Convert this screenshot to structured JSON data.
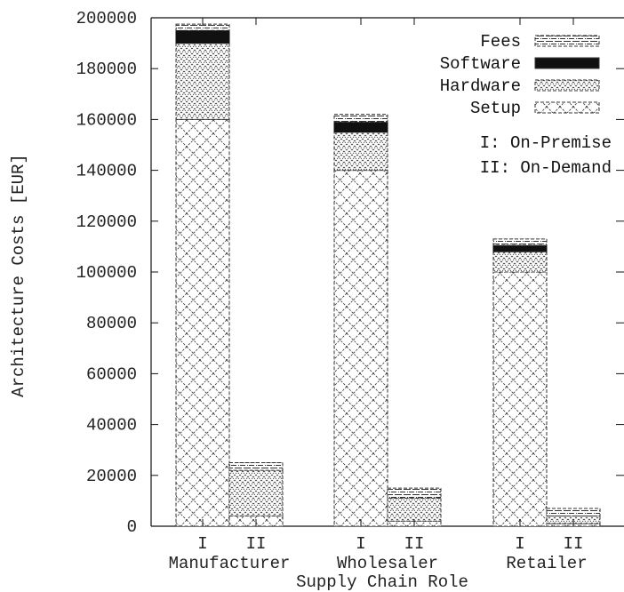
{
  "chart_data": {
    "type": "bar",
    "stacked": true,
    "xlabel": "Supply Chain Role",
    "ylabel": "Architecture Costs [EUR]",
    "ylim": [
      0,
      200000
    ],
    "yticks": [
      "0",
      "20000",
      "40000",
      "60000",
      "80000",
      "100000",
      "120000",
      "140000",
      "160000",
      "180000",
      "200000"
    ],
    "ytick_values": [
      0,
      20000,
      40000,
      60000,
      80000,
      100000,
      120000,
      140000,
      160000,
      180000,
      200000
    ],
    "groups": [
      "Manufacturer",
      "Wholesaler",
      "Retailer"
    ],
    "bar_labels": [
      "I",
      "II"
    ],
    "grid": false,
    "legend_placement": "top-right",
    "series": [
      {
        "name": "Setup",
        "pattern": "cross-hatch",
        "values": [
          160000,
          4000,
          140000,
          2000,
          100000,
          1000
        ]
      },
      {
        "name": "Hardware",
        "pattern": "dense-dots",
        "values": [
          30000,
          18000,
          15000,
          9000,
          8000,
          3000
        ]
      },
      {
        "name": "Software",
        "pattern": "solid-black",
        "values": [
          5000,
          0,
          4000,
          0,
          2500,
          0
        ]
      },
      {
        "name": "Fees",
        "pattern": "dash-dot",
        "values": [
          2500,
          3000,
          3000,
          4000,
          2500,
          3000
        ]
      }
    ],
    "legend_order": [
      "Fees",
      "Software",
      "Hardware",
      "Setup"
    ],
    "notes": [
      "I: On-Premise",
      "II: On-Demand"
    ],
    "colors": {
      "ink": "#111111",
      "background": "#ffffff"
    }
  }
}
